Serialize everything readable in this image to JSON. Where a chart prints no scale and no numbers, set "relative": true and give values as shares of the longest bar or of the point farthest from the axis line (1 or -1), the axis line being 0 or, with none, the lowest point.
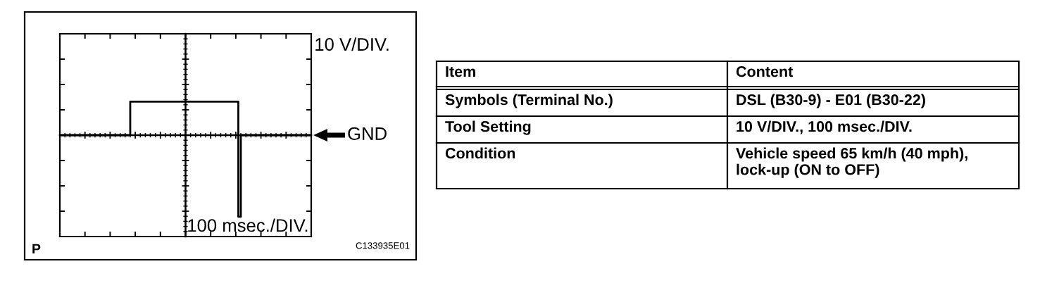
{
  "chart_data": [
    {
      "type": "step",
      "ylabel": "10 V/DIV.",
      "xlabel": "100 msec./DIV.",
      "color": "#000000",
      "relative": true,
      "tick_labels": false,
      "categories": [
        null,
        null,
        null,
        null,
        null,
        null,
        null,
        null,
        null,
        null,
        null,
        null,
        null,
        null,
        null,
        null,
        null,
        null,
        null,
        null,
        null,
        null,
        null,
        null,
        null,
        null,
        null,
        null,
        null,
        null,
        null,
        null,
        null,
        null,
        null,
        null,
        null,
        null,
        null,
        null,
        null,
        null,
        null,
        null,
        null,
        null,
        null,
        null,
        null,
        null,
        null,
        null,
        null,
        null,
        null,
        null,
        null,
        null,
        null,
        null,
        null,
        null,
        null,
        null,
        null,
        null,
        null,
        null,
        null,
        null,
        null,
        null,
        null,
        null,
        null,
        null,
        null,
        null,
        null,
        null,
        null,
        null,
        null,
        null,
        null,
        null,
        null,
        null,
        null,
        null,
        null,
        null,
        null,
        null,
        null,
        null,
        null,
        null,
        null,
        null,
        null
      ],
      "values": [
        0,
        0,
        0,
        0,
        0,
        0,
        0,
        0,
        0,
        0,
        0,
        0,
        0,
        0,
        0,
        0,
        0,
        0,
        0,
        0,
        0,
        0,
        0,
        0,
        0,
        0,
        0,
        0,
        0.41,
        0.41,
        0.41,
        0.41,
        0.41,
        0.41,
        0.41,
        0.41,
        0.41,
        0.41,
        0.41,
        0.41,
        0.41,
        0.41,
        0.41,
        0.41,
        0.41,
        0.41,
        0.41,
        0.41,
        0.41,
        0.41,
        0.41,
        0.41,
        0.41,
        0.41,
        0.41,
        0.41,
        0.41,
        0.41,
        0.41,
        0.41,
        0.41,
        0.41,
        0.41,
        0.41,
        0.41,
        0.41,
        0.41,
        0.41,
        0.41,
        0.41,
        0.41,
        -1,
        0,
        0,
        0,
        0,
        0,
        0,
        0,
        0,
        0,
        0,
        0,
        0,
        0,
        0,
        0,
        0,
        0,
        0,
        0,
        0,
        0,
        0,
        0,
        0,
        0,
        0,
        0,
        0,
        0
      ],
      "annotations": [
        "GND",
        "P",
        "C133935E01"
      ]
    },
    {
      "type": "other",
      "categories": [
        "Item",
        "Content"
      ],
      "y_categories": [
        "Symbols (Terminal No.)",
        "Tool Setting",
        "Condition"
      ],
      "cell_labels": [
        [
          "DSL (B30-9) - E01 (B30-22)"
        ],
        [
          "10 V/DIV., 100 msec./DIV."
        ],
        [
          "Vehicle speed 65 km/h (40 mph),\nlock-up (ON to OFF)"
        ]
      ]
    }
  ]
}
